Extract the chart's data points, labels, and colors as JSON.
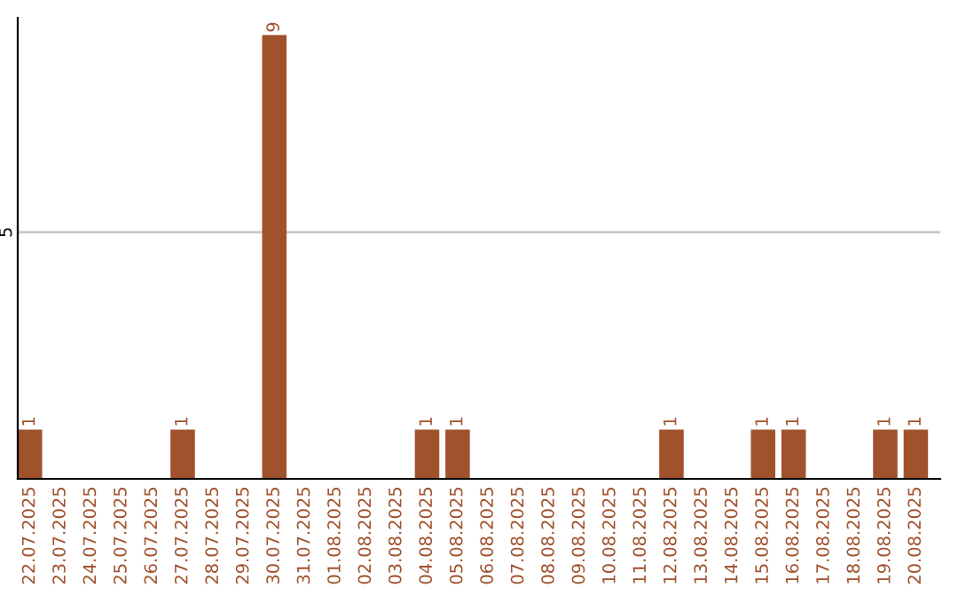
{
  "chart_data": {
    "type": "bar",
    "categories": [
      "22.07.2025",
      "23.07.2025",
      "24.07.2025",
      "25.07.2025",
      "26.07.2025",
      "27.07.2025",
      "28.07.2025",
      "29.07.2025",
      "30.07.2025",
      "31.07.2025",
      "01.08.2025",
      "02.08.2025",
      "03.08.2025",
      "04.08.2025",
      "05.08.2025",
      "06.08.2025",
      "07.08.2025",
      "08.08.2025",
      "09.08.2025",
      "10.08.2025",
      "11.08.2025",
      "12.08.2025",
      "13.08.2025",
      "14.08.2025",
      "15.08.2025",
      "16.08.2025",
      "17.08.2025",
      "18.08.2025",
      "19.08.2025",
      "20.08.2025"
    ],
    "values": [
      1,
      0,
      0,
      0,
      0,
      1,
      0,
      0,
      9,
      0,
      0,
      0,
      0,
      1,
      1,
      0,
      0,
      0,
      0,
      0,
      0,
      1,
      0,
      0,
      1,
      1,
      0,
      0,
      1,
      1
    ],
    "color": "#a0522d",
    "value_labels": [
      "1",
      null,
      null,
      null,
      null,
      "1",
      null,
      null,
      "9",
      null,
      null,
      null,
      null,
      "1",
      "1",
      null,
      null,
      null,
      null,
      null,
      null,
      "1",
      null,
      null,
      "1",
      "1",
      null,
      null,
      "1",
      "1"
    ],
    "ylim": [
      0,
      9.35
    ],
    "yticks": [
      5
    ],
    "grid": "y"
  }
}
